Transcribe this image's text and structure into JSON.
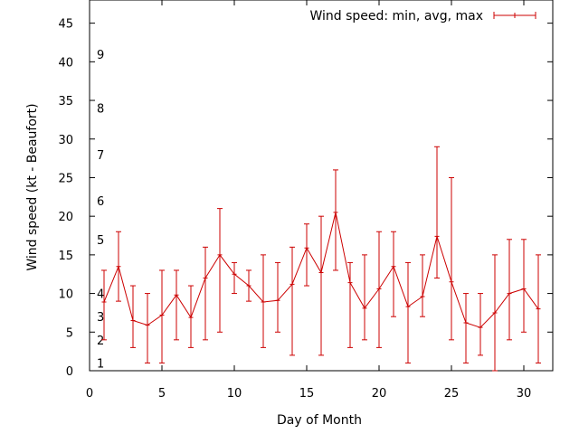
{
  "chart_data": {
    "type": "line",
    "title": "",
    "xlabel": "Day of Month",
    "ylabel": "Wind speed (kt - Beaufort)",
    "xlim": [
      0,
      32
    ],
    "ylim": [
      0,
      48
    ],
    "x_ticks": [
      0,
      5,
      10,
      15,
      20,
      25,
      30
    ],
    "y_ticks": [
      0,
      5,
      10,
      15,
      20,
      25,
      30,
      35,
      40,
      45
    ],
    "beaufort_labels": [
      {
        "label": "1",
        "y": 1
      },
      {
        "label": "2",
        "y": 4
      },
      {
        "label": "3",
        "y": 7
      },
      {
        "label": "4",
        "y": 10
      },
      {
        "label": "5",
        "y": 17
      },
      {
        "label": "6",
        "y": 22
      },
      {
        "label": "7",
        "y": 28
      },
      {
        "label": "8",
        "y": 34
      },
      {
        "label": "9",
        "y": 41
      }
    ],
    "grid": false,
    "legend_position": "top-right",
    "color": "#cc0000",
    "series": [
      {
        "name": "Wind speed: min, avg, max",
        "x": [
          1,
          2,
          3,
          4,
          5,
          6,
          7,
          8,
          9,
          10,
          11,
          12,
          13,
          14,
          15,
          16,
          17,
          18,
          19,
          20,
          21,
          22,
          23,
          24,
          25,
          26,
          27,
          28,
          29,
          30,
          31
        ],
        "avg": [
          8.9,
          13.5,
          6.5,
          5.9,
          7.2,
          9.8,
          6.9,
          12.0,
          15.0,
          12.5,
          11.0,
          8.9,
          9.1,
          11.2,
          15.9,
          12.7,
          20.5,
          11.4,
          8.1,
          10.6,
          13.5,
          8.3,
          9.6,
          17.4,
          11.5,
          6.2,
          5.6,
          7.5,
          10.0,
          10.6,
          8.0
        ],
        "min": [
          4,
          9,
          3,
          1,
          1,
          4,
          3,
          4,
          5,
          10,
          9,
          3,
          5,
          2,
          11,
          2,
          13,
          3,
          4,
          3,
          7,
          1,
          7,
          12,
          4,
          1,
          2,
          0,
          4,
          5,
          1
        ],
        "max": [
          13,
          18,
          11,
          10,
          13,
          13,
          11,
          16,
          21,
          14,
          13,
          15,
          14,
          16,
          19,
          20,
          26,
          14,
          15,
          18,
          18,
          14,
          15,
          29,
          25,
          10,
          10,
          15,
          17,
          17,
          15
        ]
      }
    ]
  }
}
